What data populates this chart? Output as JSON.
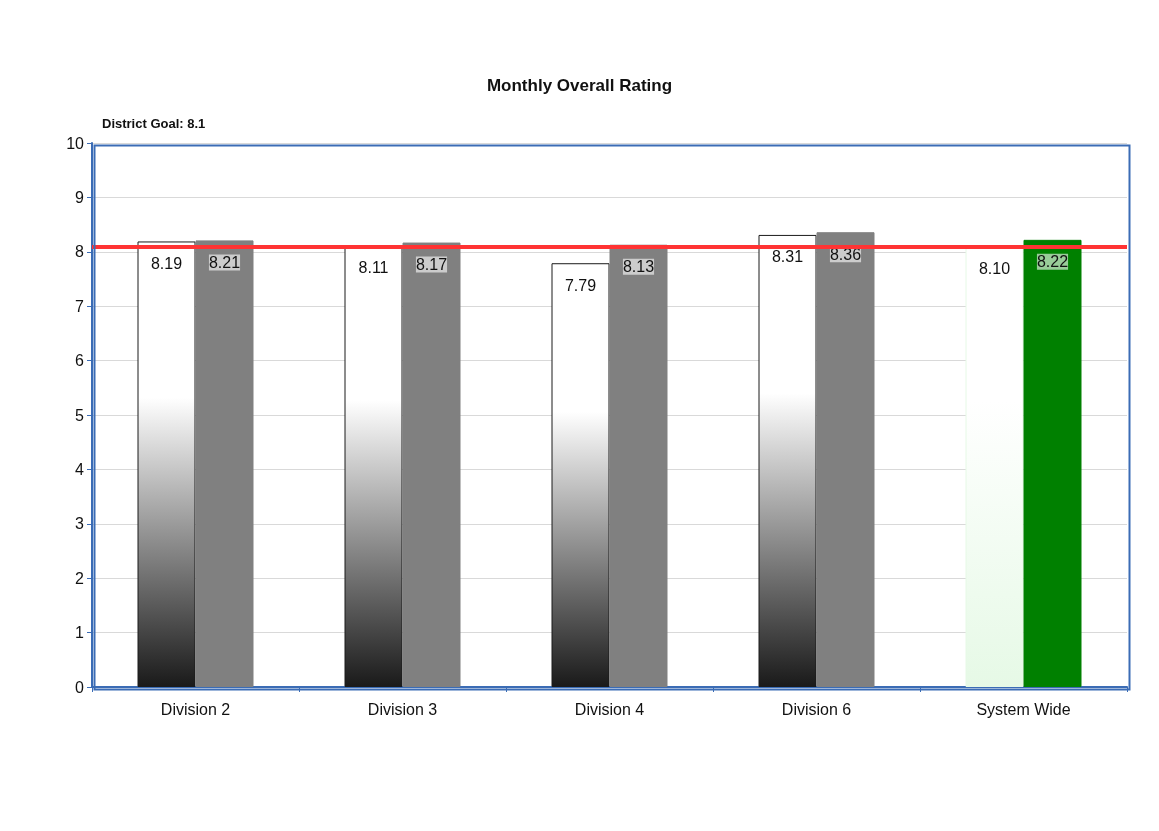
{
  "chart_data": {
    "type": "bar",
    "title": "Monthly Overall Rating",
    "annotations": [
      "District Goal: 8.1"
    ],
    "categories": [
      "Division 2",
      "Division 3",
      "Division 4",
      "Division 6",
      "System Wide"
    ],
    "series": [
      {
        "colors": [
          "#1a1a1a",
          "#1a1a1a",
          "#1a1a1a",
          "#1a1a1a",
          "#e6f9e6"
        ],
        "values": [
          8.19,
          8.11,
          7.79,
          8.31,
          8.1
        ],
        "value_labels": [
          "8.19",
          "8.11",
          "7.79",
          "8.31",
          "8.10"
        ]
      },
      {
        "colors": [
          "#808080",
          "#808080",
          "#808080",
          "#808080",
          "#008000"
        ],
        "values": [
          8.21,
          8.17,
          8.13,
          8.36,
          8.22
        ],
        "value_labels": [
          "8.21",
          "8.17",
          "8.13",
          "8.36",
          "8.22"
        ]
      }
    ],
    "ylim": [
      0,
      10
    ],
    "yticks": [
      0,
      1,
      2,
      3,
      4,
      5,
      6,
      7,
      8,
      9,
      10
    ],
    "grid": "y",
    "ref_lines": [
      {
        "axis": "y",
        "value": 8.1,
        "color": "#ff3333"
      }
    ]
  }
}
